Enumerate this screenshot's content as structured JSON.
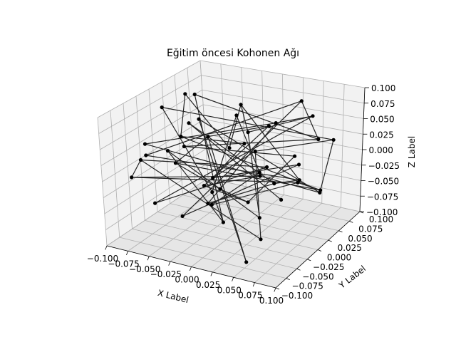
{
  "chart_data": {
    "type": "scatter",
    "title": "Eğitim öncesi Kohonen Ağı",
    "xlabel": "X Label",
    "ylabel": "Y Label",
    "zlabel": "Z Label",
    "xlim": [
      -0.1,
      0.1
    ],
    "ylim": [
      -0.1,
      0.1
    ],
    "zlim": [
      -0.1,
      0.1
    ],
    "xticks": [
      "−0.100",
      "−0.075",
      "−0.050",
      "−0.025",
      "0.000",
      "0.025",
      "0.050",
      "0.075",
      "0.100"
    ],
    "yticks": [
      "−0.100",
      "−0.075",
      "−0.050",
      "−0.025",
      "0.000",
      "0.025",
      "0.050",
      "0.075",
      "0.100"
    ],
    "zticks": [
      "−0.100",
      "−0.075",
      "−0.050",
      "−0.025",
      "0.000",
      "0.025",
      "0.050",
      "0.075",
      "0.100"
    ],
    "grid": true,
    "series": [
      {
        "marker_color": "#000000",
        "line_color": "#222222",
        "points": [
          [
            -0.07,
            0.02,
            0.09
          ],
          [
            0.02,
            -0.05,
            0.06
          ],
          [
            -0.04,
            0.08,
            0.05
          ],
          [
            0.06,
            0.03,
            -0.02
          ],
          [
            -0.09,
            -0.03,
            0.01
          ],
          [
            0.04,
            0.07,
            0.08
          ],
          [
            -0.02,
            -0.08,
            -0.04
          ],
          [
            0.08,
            -0.01,
            0.03
          ],
          [
            -0.06,
            0.05,
            -0.06
          ],
          [
            0.01,
            0.0,
            0.04
          ],
          [
            -0.03,
            -0.06,
            0.07
          ],
          [
            0.07,
            0.06,
            -0.05
          ],
          [
            -0.08,
            0.01,
            -0.02
          ],
          [
            0.03,
            -0.09,
            0.02
          ],
          [
            -0.01,
            0.04,
            -0.08
          ],
          [
            0.09,
            -0.04,
            0.06
          ],
          [
            -0.05,
            -0.02,
            0.03
          ],
          [
            0.05,
            0.09,
            0.01
          ],
          [
            -0.09,
            0.07,
            0.06
          ],
          [
            0.0,
            -0.03,
            -0.07
          ],
          [
            -0.04,
            -0.07,
            0.05
          ],
          [
            0.06,
            -0.06,
            -0.03
          ],
          [
            -0.02,
            0.06,
            0.02
          ],
          [
            0.08,
            0.02,
            0.09
          ],
          [
            -0.07,
            -0.05,
            -0.05
          ],
          [
            0.02,
            0.03,
            -0.01
          ],
          [
            -0.06,
            -0.09,
            0.04
          ],
          [
            0.04,
            -0.02,
            -0.09
          ],
          [
            -0.03,
            0.09,
            -0.03
          ],
          [
            0.09,
            0.05,
            0.04
          ],
          [
            -0.08,
            -0.01,
            0.08
          ],
          [
            0.01,
            -0.07,
            0.0
          ],
          [
            -0.01,
            0.02,
            0.07
          ],
          [
            0.07,
            -0.08,
            0.05
          ],
          [
            -0.05,
            0.03,
            -0.09
          ],
          [
            0.03,
            0.08,
            -0.06
          ],
          [
            -0.09,
            -0.06,
            -0.01
          ],
          [
            0.05,
            -0.04,
            0.02
          ],
          [
            -0.04,
            0.0,
            -0.04
          ],
          [
            0.0,
            0.07,
            0.03
          ],
          [
            -0.07,
            0.06,
            0.0
          ],
          [
            0.06,
            -0.09,
            -0.08
          ],
          [
            -0.02,
            -0.04,
            0.09
          ],
          [
            0.08,
            0.04,
            -0.04
          ],
          [
            -0.06,
            -0.08,
            0.06
          ],
          [
            0.02,
            0.05,
            0.05
          ],
          [
            -0.03,
            -0.01,
            -0.06
          ],
          [
            0.04,
            0.01,
            -0.02
          ],
          [
            -0.08,
            0.04,
            0.03
          ],
          [
            0.09,
            -0.07,
            0.01
          ]
        ],
        "edges": [
          [
            0,
            1
          ],
          [
            1,
            2
          ],
          [
            2,
            3
          ],
          [
            3,
            4
          ],
          [
            4,
            5
          ],
          [
            5,
            6
          ],
          [
            6,
            7
          ],
          [
            7,
            8
          ],
          [
            8,
            9
          ],
          [
            9,
            10
          ],
          [
            10,
            11
          ],
          [
            11,
            12
          ],
          [
            12,
            13
          ],
          [
            13,
            14
          ],
          [
            14,
            15
          ],
          [
            15,
            16
          ],
          [
            16,
            17
          ],
          [
            17,
            18
          ],
          [
            18,
            19
          ],
          [
            19,
            20
          ],
          [
            20,
            21
          ],
          [
            21,
            22
          ],
          [
            22,
            23
          ],
          [
            23,
            24
          ],
          [
            24,
            25
          ],
          [
            25,
            26
          ],
          [
            26,
            27
          ],
          [
            27,
            28
          ],
          [
            28,
            29
          ],
          [
            29,
            30
          ],
          [
            30,
            31
          ],
          [
            31,
            32
          ],
          [
            32,
            33
          ],
          [
            33,
            34
          ],
          [
            34,
            35
          ],
          [
            35,
            36
          ],
          [
            36,
            37
          ],
          [
            37,
            38
          ],
          [
            38,
            39
          ],
          [
            39,
            40
          ],
          [
            40,
            41
          ],
          [
            41,
            42
          ],
          [
            42,
            43
          ],
          [
            43,
            44
          ],
          [
            44,
            45
          ],
          [
            45,
            46
          ],
          [
            46,
            47
          ],
          [
            47,
            48
          ],
          [
            48,
            49
          ],
          [
            0,
            10
          ],
          [
            2,
            22
          ],
          [
            5,
            17
          ],
          [
            8,
            28
          ],
          [
            11,
            35
          ],
          [
            14,
            38
          ],
          [
            19,
            31
          ],
          [
            23,
            45
          ],
          [
            26,
            36
          ],
          [
            29,
            43
          ],
          [
            3,
            47
          ],
          [
            12,
            40
          ]
        ]
      }
    ]
  }
}
